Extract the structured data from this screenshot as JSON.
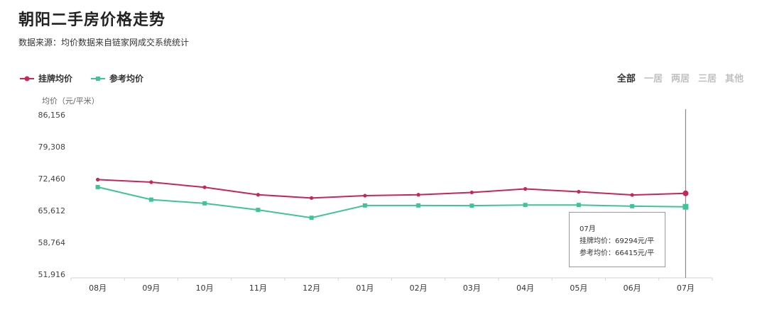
{
  "page": {
    "title": "朝阳二手房价格走势",
    "source": "数据来源：均价数据来自链家网成交系统统计"
  },
  "tabs": [
    {
      "label": "全部",
      "active": true
    },
    {
      "label": "一居",
      "active": false
    },
    {
      "label": "两居",
      "active": false
    },
    {
      "label": "三居",
      "active": false
    },
    {
      "label": "其他",
      "active": false
    }
  ],
  "colors": {
    "listing": "#c8265a",
    "reference": "#3ec498",
    "axis": "#d6d6d6",
    "cursor": "#777777"
  },
  "tooltip": {
    "month": "07月",
    "listing_line": "挂牌均价：69294元/平",
    "reference_line": "参考均价：66415元/平"
  },
  "chart_data": {
    "type": "line",
    "ylabel": "均价（元/平米）",
    "ylim": [
      51916,
      86156
    ],
    "yticks": [
      "86,156",
      "79,308",
      "72,460",
      "65,612",
      "58,764",
      "51,916"
    ],
    "categories": [
      "08月",
      "09月",
      "10月",
      "11月",
      "12月",
      "01月",
      "02月",
      "03月",
      "04月",
      "05月",
      "06月",
      "07月"
    ],
    "legend_position": "top-left",
    "series": [
      {
        "name": "挂牌均价",
        "marker": "circle",
        "values": [
          72250,
          71700,
          70600,
          69000,
          68300,
          68800,
          69000,
          69500,
          70250,
          69650,
          68950,
          69294
        ]
      },
      {
        "name": "参考均价",
        "marker": "square",
        "values": [
          70650,
          67950,
          67150,
          65750,
          64050,
          66700,
          66700,
          66650,
          66800,
          66800,
          66550,
          66415
        ]
      }
    ],
    "highlight_index": 11
  }
}
